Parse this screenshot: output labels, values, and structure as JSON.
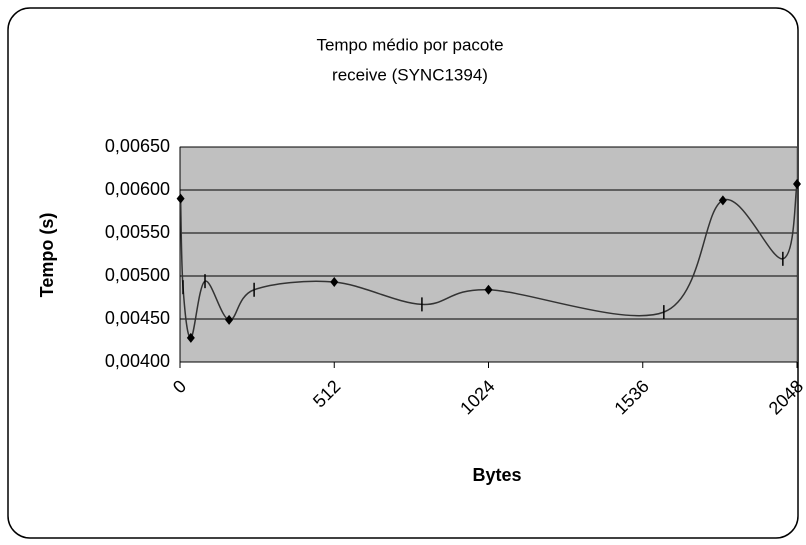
{
  "chart_data": {
    "type": "line",
    "title": [
      "Tempo médio por pacote",
      "receive (SYNC1394)"
    ],
    "x_label": "Bytes",
    "y_label": "Tempo (s)",
    "x": [
      2,
      10,
      36,
      83,
      163,
      246,
      512,
      803,
      1024,
      1606,
      1802,
      2001,
      2048
    ],
    "series": [
      {
        "name": "receive",
        "color": "#333333",
        "values": [
          0.0059,
          0.00487,
          0.00428,
          0.00494,
          0.00449,
          0.00484,
          0.00493,
          0.00467,
          0.00484,
          0.00458,
          0.00588,
          0.0052,
          0.00607
        ]
      }
    ],
    "xlim": [
      0,
      2048
    ],
    "xticks": [
      0,
      512,
      1024,
      1536,
      2048
    ],
    "ylim": [
      0.004,
      0.0065
    ],
    "yticks": [
      {
        "value": 0.004,
        "label": "0,00400"
      },
      {
        "value": 0.0045,
        "label": "0,00450"
      },
      {
        "value": 0.005,
        "label": "0,00500"
      },
      {
        "value": 0.0055,
        "label": "0,00550"
      },
      {
        "value": 0.006,
        "label": "0,00600"
      },
      {
        "value": 0.0065,
        "label": "0,00650"
      }
    ],
    "grid": true,
    "plot_background": "#c0c0c0"
  }
}
